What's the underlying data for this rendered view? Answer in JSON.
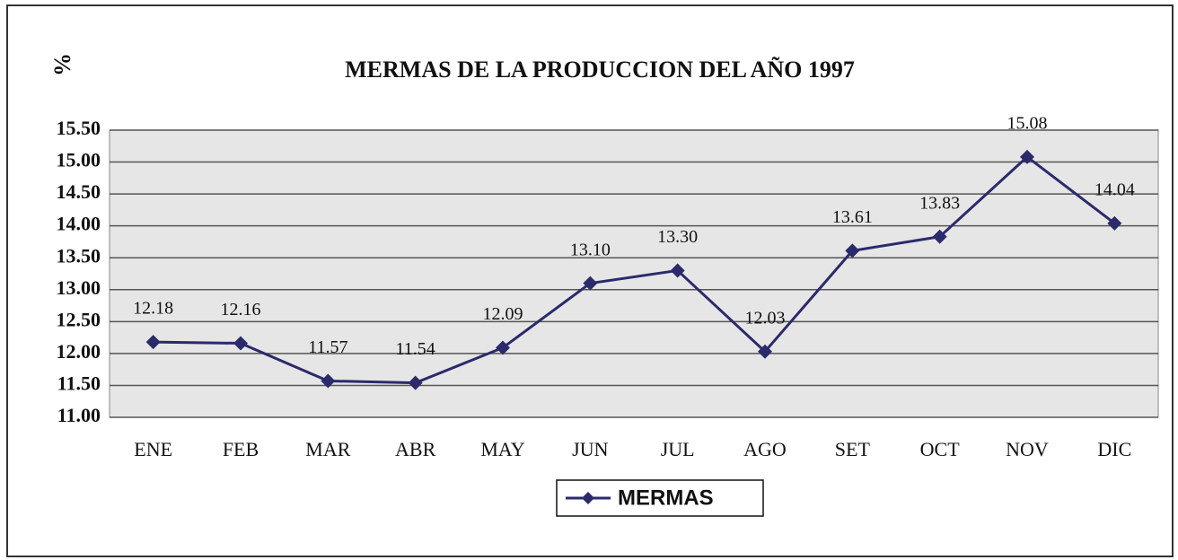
{
  "chart_data": {
    "type": "line",
    "title": "MERMAS DE LA PRODUCCION DEL AÑO 1997",
    "y_label": "%",
    "categories": [
      "ENE",
      "FEB",
      "MAR",
      "ABR",
      "MAY",
      "JUN",
      "JUL",
      "AGO",
      "SET",
      "OCT",
      "NOV",
      "DIC"
    ],
    "series": [
      {
        "name": "MERMAS",
        "color": "#2b2a6b",
        "values": [
          12.18,
          12.16,
          11.57,
          11.54,
          12.09,
          13.1,
          13.3,
          12.03,
          13.61,
          13.83,
          15.08,
          14.04
        ],
        "value_labels": [
          "12.18",
          "12.16",
          "11.57",
          "11.54",
          "12.09",
          "13.10",
          "13.30",
          "12.03",
          "13.61",
          "13.83",
          "15.08",
          "14.04"
        ]
      }
    ],
    "ylim": [
      11,
      15.5
    ],
    "yticks": [
      {
        "value": 11,
        "label": "11.00"
      },
      {
        "value": 11.5,
        "label": "11.50"
      },
      {
        "value": 12,
        "label": "12.00"
      },
      {
        "value": 12.5,
        "label": "12.50"
      },
      {
        "value": 13,
        "label": "13.00"
      },
      {
        "value": 13.5,
        "label": "13.50"
      },
      {
        "value": 14,
        "label": "14.00"
      },
      {
        "value": 14.5,
        "label": "14.50"
      },
      {
        "value": 15,
        "label": "15.00"
      },
      {
        "value": 15.5,
        "label": "15.50"
      }
    ],
    "grid": true,
    "legend": "bottom"
  }
}
